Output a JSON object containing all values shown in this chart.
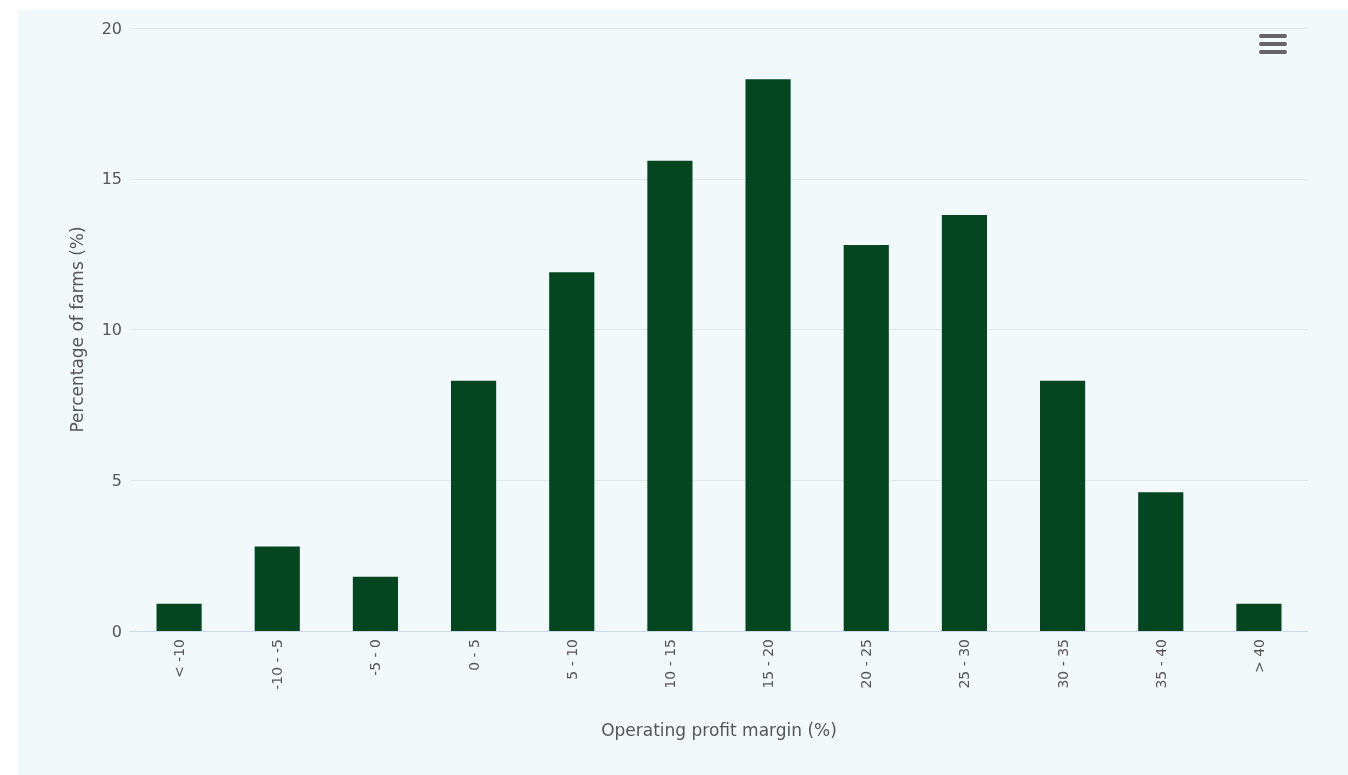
{
  "chart_data": {
    "type": "bar",
    "xlabel": "Operating profit margin (%)",
    "ylabel": "Percentage of farms (%)",
    "categories": [
      "< -10",
      "-10 - -5",
      "-5 - 0",
      "0 - 5",
      "5 - 10",
      "10 - 15",
      "15 - 20",
      "20 - 25",
      "25 - 30",
      "30 - 35",
      "35 - 40",
      "> 40"
    ],
    "values": [
      0.9,
      2.8,
      1.8,
      8.3,
      11.9,
      15.6,
      18.3,
      12.8,
      13.8,
      8.3,
      4.6,
      0.9
    ],
    "color": "#034620",
    "ylim": [
      0,
      20
    ],
    "yticks": [
      0,
      5,
      10,
      15,
      20
    ],
    "grid": "y"
  }
}
